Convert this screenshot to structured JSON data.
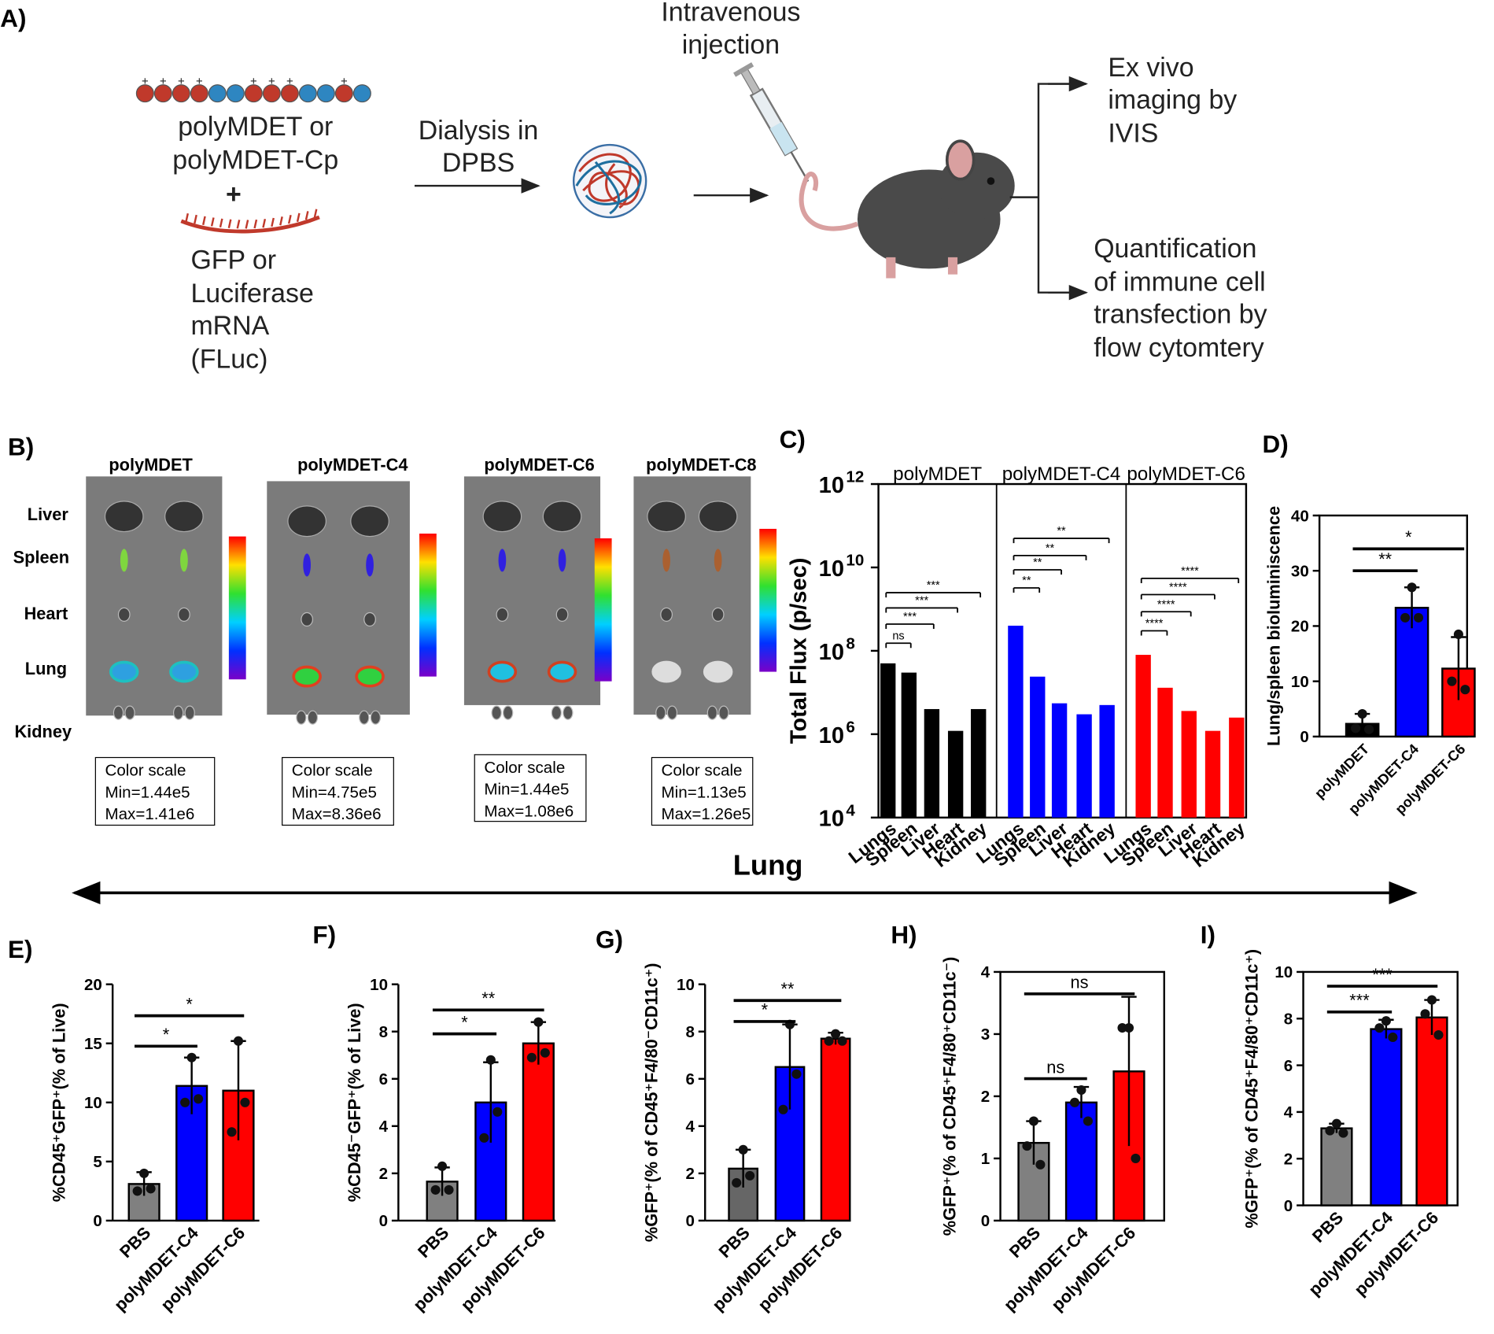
{
  "panel_a": {
    "label": "A)",
    "polymer": [
      "polyMDET or",
      "polyMDET-Cp"
    ],
    "plus": "+",
    "mrna": [
      "GFP or",
      "Luciferase",
      "mRNA",
      "(FLuc)"
    ],
    "dialysis": [
      "Dialysis in",
      "DPBS"
    ],
    "injection": [
      "Intravenous",
      "injection"
    ],
    "imaging": [
      "Ex vivo",
      "imaging by",
      "IVIS"
    ],
    "quantification": [
      "Quantification",
      "of immune cell",
      "transfection by",
      "flow cytomtery"
    ]
  },
  "panel_b": {
    "label": "B)",
    "columns": [
      "polyMDET",
      "polyMDET-C4",
      "polyMDET-C6",
      "polyMDET-C8"
    ],
    "organs": [
      "Liver",
      "Spleen",
      "Heart",
      "Lung",
      "Kidney"
    ],
    "color_scales": [
      {
        "title": "Color scale",
        "min": "Min=1.44e5",
        "max": "Max=1.41e6"
      },
      {
        "title": "Color scale",
        "min": "Min=4.75e5",
        "max": "Max=8.36e6"
      },
      {
        "title": "Color scale",
        "min": "Min=1.44e5",
        "max": "Max=1.08e6"
      },
      {
        "title": "Color scale",
        "min": "Min=1.13e5",
        "max": "Max=1.26e5"
      }
    ]
  },
  "section_label": "Lung",
  "chart_data": [
    {
      "label": "C)",
      "type": "logbar",
      "log_y": true,
      "ylabel": "Total Flux (p/sec)",
      "categories": [
        "Lungs",
        "Spleen",
        "Liver",
        "Heart",
        "Kidney"
      ],
      "series": [
        {
          "name": "polyMDET",
          "color": "#000000",
          "values": [
            50000000,
            30000000,
            4000000,
            1200000,
            4000000
          ]
        },
        {
          "name": "polyMDET-C4",
          "color": "#0000ff",
          "values": [
            400000000,
            24000000,
            5500000,
            3000000,
            5000000
          ]
        },
        {
          "name": "polyMDET-C6",
          "color": "#ff0000",
          "values": [
            80000000,
            13000000,
            3600000,
            1200000,
            2500000
          ]
        }
      ],
      "ylim": [
        10000,
        1000000000000
      ],
      "yticks": [
        {
          "value": 10000,
          "label": "10",
          "superscript": "4"
        },
        {
          "value": 1000000,
          "label": "10",
          "superscript": "6"
        },
        {
          "value": 100000000,
          "label": "10",
          "superscript": "8"
        },
        {
          "value": 10000000000,
          "label": "10",
          "superscript": "10"
        },
        {
          "value": 1000000000000,
          "label": "10",
          "superscript": "12"
        }
      ],
      "annotations": [
        [
          "ns",
          "***",
          "***",
          "***"
        ],
        [
          "**",
          "**",
          "**",
          "**"
        ],
        [
          "****",
          "****",
          "****",
          "****"
        ]
      ]
    },
    {
      "label": "D)",
      "type": "bar",
      "ylabel": "Lung/spleen bioluminiscence",
      "categories": [
        "polyMDET",
        "polyMDET-C4",
        "polyMDET-C6"
      ],
      "colors": [
        "#000000",
        "#0000ff",
        "#ff0000"
      ],
      "values": [
        2.3,
        23.3,
        12.3
      ],
      "errors": [
        1.8,
        3.7,
        5.7
      ],
      "points": [
        [
          4.1,
          1.5,
          1.3
        ],
        [
          27,
          21.5,
          21.5
        ],
        [
          18.5,
          10,
          8.5
        ]
      ],
      "ylim": [
        0,
        40
      ],
      "yticks": [
        0,
        10,
        20,
        30,
        40
      ],
      "annotations": [
        "**",
        "*"
      ]
    },
    {
      "label": "E)",
      "type": "bar",
      "ylabel": "%CD45⁺GFP⁺(% of Live)",
      "categories": [
        "PBS",
        "polyMDET-C4",
        "polyMDET-C6"
      ],
      "colors": [
        "#808080",
        "#0000ff",
        "#ff0000"
      ],
      "values": [
        3.1,
        11.4,
        11.0
      ],
      "errors": [
        1.0,
        2.4,
        4.2
      ],
      "points": [
        [
          4.0,
          2.5,
          2.7
        ],
        [
          13.8,
          10.0,
          10.3
        ],
        [
          15.2,
          7.5,
          10.0
        ]
      ],
      "ylim": [
        0,
        20
      ],
      "yticks": [
        0,
        5,
        10,
        15,
        20
      ],
      "annotations": [
        "*",
        "*"
      ]
    },
    {
      "label": "F)",
      "type": "bar",
      "ylabel": "%CD45⁻GFP⁺(% of Live)",
      "categories": [
        "PBS",
        "polyMDET-C4",
        "polyMDET-C6"
      ],
      "colors": [
        "#808080",
        "#0000ff",
        "#ff0000"
      ],
      "values": [
        1.65,
        5.0,
        7.5
      ],
      "errors": [
        0.6,
        1.7,
        0.9
      ],
      "points": [
        [
          2.3,
          1.3,
          1.3
        ],
        [
          6.8,
          3.5,
          4.6
        ],
        [
          8.4,
          6.9,
          7.1
        ]
      ],
      "ylim": [
        0,
        10
      ],
      "yticks": [
        0,
        2,
        4,
        6,
        8,
        10
      ],
      "annotations": [
        "*",
        "**"
      ]
    },
    {
      "label": "G)",
      "type": "bar",
      "ylabel": "%GFP⁺(% of CD45⁺F4/80⁻CD11c⁺)",
      "categories": [
        "PBS",
        "polyMDET-C4",
        "polyMDET-C6"
      ],
      "colors": [
        "#666666",
        "#0000ff",
        "#ff0000"
      ],
      "values": [
        2.2,
        6.5,
        7.7
      ],
      "errors": [
        0.8,
        1.8,
        0.25
      ],
      "points": [
        [
          3.0,
          1.6,
          1.9
        ],
        [
          8.3,
          4.7,
          6.2
        ],
        [
          7.9,
          7.6,
          7.6
        ]
      ],
      "ylim": [
        0,
        10
      ],
      "yticks": [
        0,
        2,
        4,
        6,
        8,
        10
      ],
      "annotations": [
        "*",
        "**"
      ]
    },
    {
      "label": "H)",
      "type": "bar",
      "ylabel": "%GFP⁺(% of CD45⁺F4/80⁺CD11c⁻)",
      "categories": [
        "PBS",
        "polyMDET-C4",
        "polyMDET-C6"
      ],
      "colors": [
        "#808080",
        "#0000ff",
        "#ff0000"
      ],
      "values": [
        1.25,
        1.9,
        2.4
      ],
      "errors": [
        0.35,
        0.25,
        1.2
      ],
      "points": [
        [
          1.6,
          1.2,
          0.9
        ],
        [
          2.1,
          1.9,
          1.6
        ],
        [
          3.1,
          3.1,
          1.0
        ]
      ],
      "ylim": [
        0,
        4
      ],
      "yticks": [
        0,
        1,
        2,
        3,
        4
      ],
      "annotations": [
        "ns",
        "ns"
      ]
    },
    {
      "label": "I)",
      "type": "bar",
      "ylabel": "%GFP⁺(% of CD45⁺F4/80⁺CD11c⁺)",
      "categories": [
        "PBS",
        "polyMDET-C4",
        "polyMDET-C6"
      ],
      "colors": [
        "#808080",
        "#0000ff",
        "#ff0000"
      ],
      "values": [
        3.3,
        7.55,
        8.05
      ],
      "errors": [
        0.2,
        0.4,
        0.75
      ],
      "points": [
        [
          3.5,
          3.2,
          3.1
        ],
        [
          7.9,
          7.6,
          7.2
        ],
        [
          8.8,
          8.2,
          7.3
        ]
      ],
      "ylim": [
        0,
        10
      ],
      "yticks": [
        0,
        2,
        4,
        6,
        8,
        10
      ],
      "annotations": [
        "***",
        "***"
      ]
    }
  ]
}
